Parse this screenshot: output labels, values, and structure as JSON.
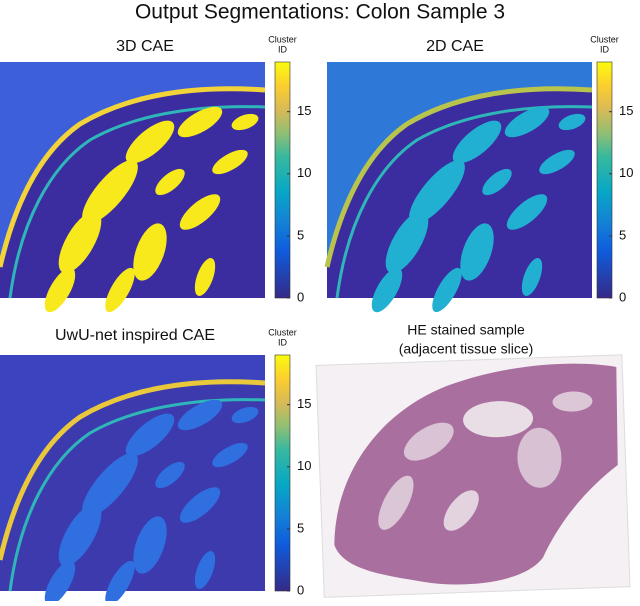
{
  "title": "Output Segmentations: Colon Sample 3",
  "panels": [
    {
      "title": "3D CAE",
      "colorbar": {
        "label": [
          "Cluster",
          "ID"
        ],
        "range": [
          0,
          19
        ],
        "ticks": [
          0,
          5,
          10,
          15
        ]
      },
      "map_colors": {
        "background": "#3b2d9f",
        "outside": "#3d5fd9",
        "edge": "#f2d43a",
        "blobs": "#f7e91c"
      }
    },
    {
      "title": "2D CAE",
      "colorbar": {
        "label": [
          "Cluster",
          "ID"
        ],
        "range": [
          0,
          19
        ],
        "ticks": [
          0,
          5,
          10,
          15
        ]
      },
      "map_colors": {
        "background": "#3b2d9f",
        "outside": "#2e79d8",
        "edge": "#b8c44c",
        "blobs": "#21b0d2"
      }
    },
    {
      "title": "UwU-net inspired CAE",
      "colorbar": {
        "label": [
          "Cluster",
          "ID"
        ],
        "range": [
          0,
          19
        ],
        "ticks": [
          0,
          5,
          10,
          15
        ]
      },
      "map_colors": {
        "background": "#3d3aae",
        "outside": "#3b44be",
        "edge": "#e9c83c",
        "blobs": "#2f6fe0"
      }
    }
  ],
  "he_panel": {
    "title": [
      "HE stained sample",
      "(adjacent tissue slice)"
    ]
  }
}
